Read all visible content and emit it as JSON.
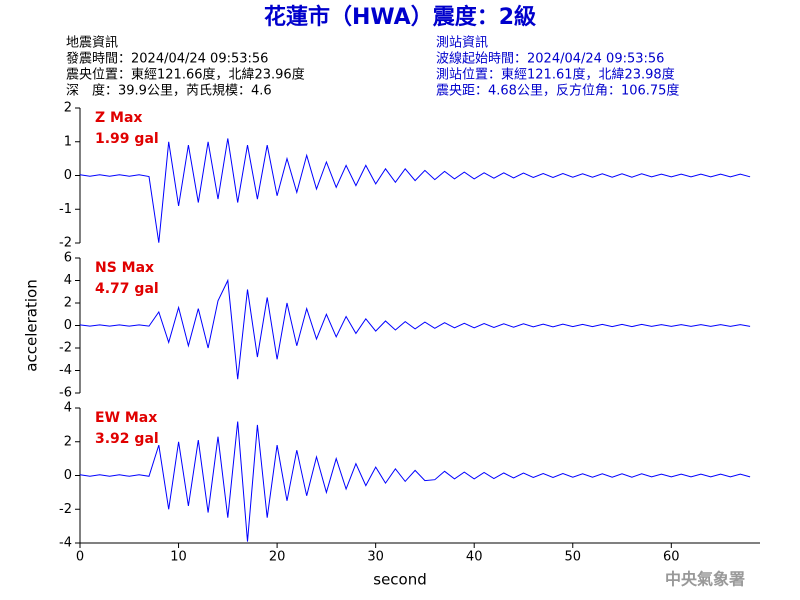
{
  "header": {
    "title": "花蓮市（HWA）震度：2級",
    "info_left": [
      "地震資訊",
      "發震時間：2024/04/24 09:53:56",
      "震央位置：東經121.66度，北緯23.96度",
      "深　度：39.9公里，芮氏規模：4.6"
    ],
    "info_right": [
      "測站資訊",
      "波線起始時間：2024/04/24 09:53:56",
      "測站位置：東經121.61度，北緯23.98度",
      "震央距：4.68公里，反方位角：106.75度"
    ],
    "footer": "中央氣象署"
  },
  "chart_data": [
    {
      "type": "line",
      "label": "Z Max",
      "max_label": "1.99 gal",
      "color": "#0000ff",
      "xlim": [
        0,
        69
      ],
      "ylim": [
        -2,
        2
      ],
      "yticks": [
        -2,
        -1,
        0,
        1,
        2
      ],
      "x": [
        0,
        1,
        2,
        3,
        4,
        5,
        6,
        7,
        8,
        9,
        10,
        11,
        12,
        13,
        14,
        15,
        16,
        17,
        18,
        19,
        20,
        21,
        22,
        23,
        24,
        25,
        26,
        27,
        28,
        29,
        30,
        31,
        32,
        33,
        34,
        35,
        36,
        37,
        38,
        39,
        40,
        41,
        42,
        43,
        44,
        45,
        46,
        47,
        48,
        49,
        50,
        51,
        52,
        53,
        54,
        55,
        56,
        57,
        58,
        59,
        60,
        61,
        62,
        63,
        64,
        65,
        66,
        67,
        68
      ],
      "values": [
        0.02,
        -0.02,
        0.02,
        -0.02,
        0.02,
        -0.02,
        0.02,
        -0.03,
        -1.99,
        1.0,
        -0.9,
        0.9,
        -0.8,
        1.0,
        -0.7,
        1.1,
        -0.8,
        0.9,
        -0.7,
        0.9,
        -0.6,
        0.5,
        -0.5,
        0.6,
        -0.4,
        0.4,
        -0.35,
        0.3,
        -0.3,
        0.3,
        -0.25,
        0.2,
        -0.2,
        0.2,
        -0.15,
        0.15,
        -0.12,
        0.12,
        -0.1,
        0.1,
        -0.1,
        0.08,
        -0.08,
        0.08,
        -0.07,
        0.07,
        -0.06,
        0.06,
        -0.06,
        0.06,
        -0.05,
        0.05,
        -0.05,
        0.05,
        -0.05,
        0.05,
        -0.05,
        0.05,
        -0.04,
        0.04,
        -0.04,
        0.04,
        -0.04,
        0.04,
        -0.04,
        0.04,
        -0.04,
        0.04,
        -0.04
      ]
    },
    {
      "type": "line",
      "label": "NS Max",
      "max_label": "4.77 gal",
      "color": "#0000ff",
      "ylabel": "acceleration",
      "xlim": [
        0,
        69
      ],
      "ylim": [
        -6,
        6
      ],
      "yticks": [
        -6,
        -4,
        -2,
        0,
        2,
        4,
        6
      ],
      "x": [
        0,
        1,
        2,
        3,
        4,
        5,
        6,
        7,
        8,
        9,
        10,
        11,
        12,
        13,
        14,
        15,
        16,
        17,
        18,
        19,
        20,
        21,
        22,
        23,
        24,
        25,
        26,
        27,
        28,
        29,
        30,
        31,
        32,
        33,
        34,
        35,
        36,
        37,
        38,
        39,
        40,
        41,
        42,
        43,
        44,
        45,
        46,
        47,
        48,
        49,
        50,
        51,
        52,
        53,
        54,
        55,
        56,
        57,
        58,
        59,
        60,
        61,
        62,
        63,
        64,
        65,
        66,
        67,
        68
      ],
      "values": [
        0.05,
        -0.05,
        0.05,
        -0.05,
        0.05,
        -0.05,
        0.05,
        -0.05,
        1.2,
        -1.5,
        1.6,
        -1.8,
        1.5,
        -2.0,
        2.2,
        4.0,
        -4.77,
        3.2,
        -2.8,
        2.5,
        -3.0,
        2.0,
        -1.8,
        1.5,
        -1.2,
        1.0,
        -1.0,
        0.8,
        -0.7,
        0.6,
        -0.5,
        0.4,
        -0.4,
        0.35,
        -0.3,
        0.3,
        -0.25,
        0.25,
        -0.2,
        0.2,
        -0.2,
        0.18,
        -0.18,
        0.15,
        -0.15,
        0.15,
        -0.12,
        0.12,
        -0.12,
        0.12,
        -0.1,
        0.1,
        -0.1,
        0.1,
        -0.1,
        0.1,
        -0.1,
        0.1,
        -0.08,
        0.08,
        -0.08,
        0.08,
        -0.08,
        0.08,
        -0.08,
        0.08,
        -0.08,
        0.08,
        -0.08
      ]
    },
    {
      "type": "line",
      "label": "EW Max",
      "max_label": "3.92 gal",
      "color": "#0000ff",
      "xlabel": "second",
      "xlim": [
        0,
        69
      ],
      "ylim": [
        -4,
        4
      ],
      "yticks": [
        -4,
        -2,
        0,
        2,
        4
      ],
      "xticks": [
        0,
        10,
        20,
        30,
        40,
        50,
        60
      ],
      "x": [
        0,
        1,
        2,
        3,
        4,
        5,
        6,
        7,
        8,
        9,
        10,
        11,
        12,
        13,
        14,
        15,
        16,
        17,
        18,
        19,
        20,
        21,
        22,
        23,
        24,
        25,
        26,
        27,
        28,
        29,
        30,
        31,
        32,
        33,
        34,
        35,
        36,
        37,
        38,
        39,
        40,
        41,
        42,
        43,
        44,
        45,
        46,
        47,
        48,
        49,
        50,
        51,
        52,
        53,
        54,
        55,
        56,
        57,
        58,
        59,
        60,
        61,
        62,
        63,
        64,
        65,
        66,
        67,
        68
      ],
      "values": [
        0.05,
        -0.05,
        0.05,
        -0.05,
        0.05,
        -0.05,
        0.05,
        -0.05,
        1.8,
        -2.0,
        2.0,
        -1.8,
        2.1,
        -2.2,
        2.3,
        -2.5,
        3.2,
        -3.92,
        3.0,
        -2.5,
        1.8,
        -1.5,
        1.5,
        -1.2,
        1.1,
        -1.0,
        1.0,
        -0.8,
        0.7,
        -0.6,
        0.5,
        -0.45,
        0.4,
        -0.35,
        0.3,
        -0.3,
        -0.25,
        0.25,
        -0.2,
        0.2,
        -0.2,
        0.18,
        -0.18,
        0.15,
        -0.15,
        0.15,
        -0.12,
        0.12,
        -0.12,
        0.12,
        -0.1,
        0.1,
        -0.1,
        0.1,
        -0.1,
        0.1,
        -0.1,
        0.1,
        -0.08,
        0.08,
        -0.08,
        0.08,
        -0.08,
        0.08,
        -0.08,
        0.08,
        -0.08,
        0.08,
        -0.08
      ]
    }
  ]
}
